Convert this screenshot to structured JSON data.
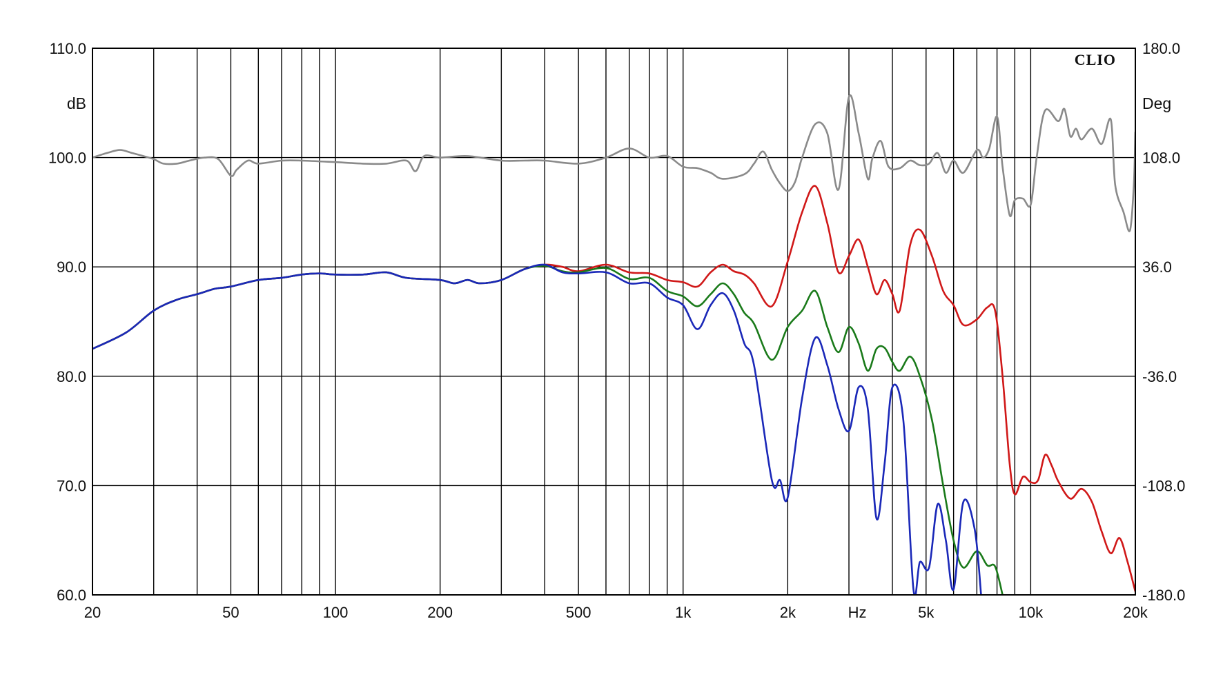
{
  "chart_data": {
    "type": "line",
    "brand": "CLIO",
    "x_unit": "Hz",
    "y_unit_left": "dB",
    "y_unit_right": "Deg",
    "x_scale": "log",
    "xlim": [
      20,
      20000
    ],
    "ylim_left": [
      60,
      110
    ],
    "ylim_right": [
      -180,
      180
    ],
    "grid": true,
    "x_tick_labels": [
      {
        "value": 20,
        "label": "20"
      },
      {
        "value": 50,
        "label": "50"
      },
      {
        "value": 100,
        "label": "100"
      },
      {
        "value": 200,
        "label": "200"
      },
      {
        "value": 500,
        "label": "500"
      },
      {
        "value": 1000,
        "label": "1k"
      },
      {
        "value": 2000,
        "label": "2k"
      },
      {
        "value": 5000,
        "label": "5k"
      },
      {
        "value": 10000,
        "label": "10k"
      },
      {
        "value": 20000,
        "label": "20k"
      }
    ],
    "x_minor_grid": [
      30,
      40,
      60,
      70,
      80,
      90,
      300,
      400,
      600,
      700,
      800,
      900,
      3000,
      4000,
      6000,
      7000,
      8000,
      9000
    ],
    "y_left_ticks": [
      {
        "value": 60,
        "label": "60.0"
      },
      {
        "value": 70,
        "label": "70.0"
      },
      {
        "value": 80,
        "label": "80.0"
      },
      {
        "value": 90,
        "label": "90.0"
      },
      {
        "value": 100,
        "label": "100.0"
      },
      {
        "value": 110,
        "label": "110.0"
      }
    ],
    "y_right_ticks": [
      {
        "value": -180,
        "label": "-180.0"
      },
      {
        "value": -108,
        "label": "-108.0"
      },
      {
        "value": -36,
        "label": "-36.0"
      },
      {
        "value": 36,
        "label": "36.0"
      },
      {
        "value": 108,
        "label": "108.0"
      },
      {
        "value": 180,
        "label": "180.0"
      }
    ],
    "series": [
      {
        "color": "#d01818",
        "axis": "left",
        "points": [
          [
            20,
            82.5
          ],
          [
            25,
            84
          ],
          [
            30,
            86
          ],
          [
            35,
            87
          ],
          [
            40,
            87.5
          ],
          [
            45,
            88
          ],
          [
            50,
            88.2
          ],
          [
            60,
            88.8
          ],
          [
            70,
            89
          ],
          [
            80,
            89.3
          ],
          [
            90,
            89.4
          ],
          [
            100,
            89.3
          ],
          [
            120,
            89.3
          ],
          [
            140,
            89.5
          ],
          [
            160,
            89
          ],
          [
            200,
            88.8
          ],
          [
            220,
            88.5
          ],
          [
            240,
            88.8
          ],
          [
            260,
            88.5
          ],
          [
            300,
            88.8
          ],
          [
            350,
            89.8
          ],
          [
            400,
            90.2
          ],
          [
            450,
            90
          ],
          [
            500,
            89.6
          ],
          [
            600,
            90.2
          ],
          [
            700,
            89.5
          ],
          [
            800,
            89.4
          ],
          [
            900,
            88.8
          ],
          [
            1000,
            88.6
          ],
          [
            1100,
            88.2
          ],
          [
            1200,
            89.5
          ],
          [
            1300,
            90.2
          ],
          [
            1400,
            89.6
          ],
          [
            1500,
            89.3
          ],
          [
            1600,
            88.5
          ],
          [
            1800,
            86.4
          ],
          [
            2000,
            90.5
          ],
          [
            2200,
            95
          ],
          [
            2400,
            97.4
          ],
          [
            2600,
            94
          ],
          [
            2800,
            89.5
          ],
          [
            3000,
            91
          ],
          [
            3200,
            92.5
          ],
          [
            3400,
            90
          ],
          [
            3600,
            87.5
          ],
          [
            3800,
            88.8
          ],
          [
            4000,
            87.5
          ],
          [
            4200,
            86
          ],
          [
            4500,
            92
          ],
          [
            4800,
            93.4
          ],
          [
            5200,
            91
          ],
          [
            5600,
            87.8
          ],
          [
            6000,
            86.5
          ],
          [
            6400,
            84.7
          ],
          [
            7000,
            85.2
          ],
          [
            7500,
            86.3
          ],
          [
            7900,
            86
          ],
          [
            8300,
            80
          ],
          [
            8700,
            72
          ],
          [
            9000,
            69.2
          ],
          [
            9500,
            70.8
          ],
          [
            10000,
            70.3
          ],
          [
            10500,
            70.5
          ],
          [
            11000,
            72.8
          ],
          [
            11500,
            71.8
          ],
          [
            12000,
            70.4
          ],
          [
            13000,
            68.8
          ],
          [
            14000,
            69.7
          ],
          [
            15000,
            68.5
          ],
          [
            16000,
            65.8
          ],
          [
            17000,
            63.8
          ],
          [
            18000,
            65.2
          ],
          [
            19000,
            63
          ],
          [
            20000,
            60.3
          ]
        ]
      },
      {
        "color": "#1a7a1a",
        "axis": "left",
        "points": [
          [
            20,
            82.5
          ],
          [
            25,
            84
          ],
          [
            30,
            86
          ],
          [
            35,
            87
          ],
          [
            40,
            87.5
          ],
          [
            45,
            88
          ],
          [
            50,
            88.2
          ],
          [
            60,
            88.8
          ],
          [
            70,
            89
          ],
          [
            80,
            89.3
          ],
          [
            90,
            89.4
          ],
          [
            100,
            89.3
          ],
          [
            120,
            89.3
          ],
          [
            140,
            89.5
          ],
          [
            160,
            89
          ],
          [
            200,
            88.8
          ],
          [
            220,
            88.5
          ],
          [
            240,
            88.8
          ],
          [
            260,
            88.5
          ],
          [
            300,
            88.8
          ],
          [
            350,
            89.8
          ],
          [
            400,
            90.1
          ],
          [
            450,
            89.6
          ],
          [
            500,
            89.5
          ],
          [
            600,
            89.9
          ],
          [
            700,
            88.9
          ],
          [
            800,
            89
          ],
          [
            900,
            87.8
          ],
          [
            1000,
            87.3
          ],
          [
            1100,
            86.4
          ],
          [
            1200,
            87.5
          ],
          [
            1300,
            88.5
          ],
          [
            1400,
            87.5
          ],
          [
            1500,
            85.8
          ],
          [
            1600,
            84.8
          ],
          [
            1800,
            81.5
          ],
          [
            2000,
            84.5
          ],
          [
            2200,
            86
          ],
          [
            2400,
            87.8
          ],
          [
            2600,
            84.5
          ],
          [
            2800,
            82.2
          ],
          [
            3000,
            84.5
          ],
          [
            3200,
            83
          ],
          [
            3400,
            80.5
          ],
          [
            3600,
            82.5
          ],
          [
            3800,
            82.6
          ],
          [
            4000,
            81.3
          ],
          [
            4200,
            80.5
          ],
          [
            4500,
            81.8
          ],
          [
            4800,
            80
          ],
          [
            5200,
            76
          ],
          [
            5600,
            70
          ],
          [
            6000,
            65
          ],
          [
            6400,
            62.5
          ],
          [
            7000,
            64
          ],
          [
            7500,
            62.7
          ],
          [
            7900,
            62.6
          ],
          [
            8300,
            60
          ]
        ]
      },
      {
        "color": "#1a28b8",
        "axis": "left",
        "points": [
          [
            20,
            82.5
          ],
          [
            25,
            84
          ],
          [
            30,
            86
          ],
          [
            35,
            87
          ],
          [
            40,
            87.5
          ],
          [
            45,
            88
          ],
          [
            50,
            88.2
          ],
          [
            60,
            88.8
          ],
          [
            70,
            89
          ],
          [
            80,
            89.3
          ],
          [
            90,
            89.4
          ],
          [
            100,
            89.3
          ],
          [
            120,
            89.3
          ],
          [
            140,
            89.5
          ],
          [
            160,
            89
          ],
          [
            200,
            88.8
          ],
          [
            220,
            88.5
          ],
          [
            240,
            88.8
          ],
          [
            260,
            88.5
          ],
          [
            300,
            88.8
          ],
          [
            350,
            89.8
          ],
          [
            400,
            90.2
          ],
          [
            450,
            89.5
          ],
          [
            500,
            89.4
          ],
          [
            600,
            89.5
          ],
          [
            700,
            88.5
          ],
          [
            800,
            88.5
          ],
          [
            900,
            87.2
          ],
          [
            1000,
            86.5
          ],
          [
            1100,
            84.3
          ],
          [
            1200,
            86.5
          ],
          [
            1300,
            87.6
          ],
          [
            1400,
            86
          ],
          [
            1500,
            83
          ],
          [
            1600,
            81
          ],
          [
            1800,
            70.5
          ],
          [
            1900,
            70.5
          ],
          [
            2000,
            68.9
          ],
          [
            2200,
            78
          ],
          [
            2400,
            83.5
          ],
          [
            2600,
            81
          ],
          [
            2800,
            77
          ],
          [
            3000,
            75
          ],
          [
            3200,
            79
          ],
          [
            3400,
            77
          ],
          [
            3600,
            67
          ],
          [
            3800,
            72
          ],
          [
            4000,
            79
          ],
          [
            4300,
            76
          ],
          [
            4600,
            60.5
          ],
          [
            4800,
            63
          ],
          [
            5100,
            62.5
          ],
          [
            5400,
            68.3
          ],
          [
            5700,
            65
          ],
          [
            6000,
            60.5
          ],
          [
            6400,
            68.5
          ],
          [
            6900,
            66
          ],
          [
            7200,
            60
          ]
        ]
      },
      {
        "color": "#8a8a8a",
        "axis": "right",
        "points": [
          [
            20,
            108
          ],
          [
            22,
            111
          ],
          [
            24,
            113
          ],
          [
            26,
            111
          ],
          [
            28,
            109
          ],
          [
            30,
            107
          ],
          [
            32,
            104
          ],
          [
            35,
            104
          ],
          [
            38,
            106
          ],
          [
            42,
            108
          ],
          [
            46,
            107
          ],
          [
            50,
            96
          ],
          [
            52,
            100
          ],
          [
            56,
            106
          ],
          [
            60,
            104
          ],
          [
            70,
            106
          ],
          [
            80,
            106
          ],
          [
            100,
            105
          ],
          [
            120,
            104
          ],
          [
            140,
            104
          ],
          [
            160,
            106
          ],
          [
            170,
            99
          ],
          [
            180,
            109
          ],
          [
            200,
            108
          ],
          [
            240,
            109
          ],
          [
            300,
            106
          ],
          [
            350,
            106
          ],
          [
            400,
            106
          ],
          [
            500,
            104
          ],
          [
            600,
            108
          ],
          [
            700,
            114
          ],
          [
            800,
            108
          ],
          [
            900,
            109
          ],
          [
            1000,
            102
          ],
          [
            1100,
            101
          ],
          [
            1200,
            98
          ],
          [
            1300,
            94
          ],
          [
            1500,
            97
          ],
          [
            1600,
            104
          ],
          [
            1700,
            112
          ],
          [
            1800,
            100
          ],
          [
            1900,
            91
          ],
          [
            2000,
            86
          ],
          [
            2100,
            92
          ],
          [
            2200,
            108
          ],
          [
            2400,
            130
          ],
          [
            2600,
            124
          ],
          [
            2800,
            87
          ],
          [
            3000,
            148
          ],
          [
            3200,
            124
          ],
          [
            3400,
            94
          ],
          [
            3500,
            107
          ],
          [
            3700,
            119
          ],
          [
            3900,
            102
          ],
          [
            4200,
            101
          ],
          [
            4500,
            106
          ],
          [
            4800,
            103
          ],
          [
            5100,
            104
          ],
          [
            5400,
            111
          ],
          [
            5700,
            98
          ],
          [
            6000,
            106
          ],
          [
            6400,
            98
          ],
          [
            7000,
            113
          ],
          [
            7300,
            108
          ],
          [
            7600,
            114
          ],
          [
            8000,
            135
          ],
          [
            8300,
            102
          ],
          [
            8700,
            70
          ],
          [
            9000,
            80
          ],
          [
            9500,
            81
          ],
          [
            10000,
            77
          ],
          [
            10400,
            108
          ],
          [
            11000,
            139
          ],
          [
            12000,
            132
          ],
          [
            12500,
            140
          ],
          [
            13000,
            122
          ],
          [
            13500,
            127
          ],
          [
            14000,
            120
          ],
          [
            15000,
            127
          ],
          [
            16000,
            117
          ],
          [
            17000,
            133
          ],
          [
            17500,
            90
          ],
          [
            18500,
            72
          ],
          [
            19300,
            60
          ],
          [
            19800,
            90
          ],
          [
            20000,
            125
          ]
        ]
      }
    ]
  }
}
